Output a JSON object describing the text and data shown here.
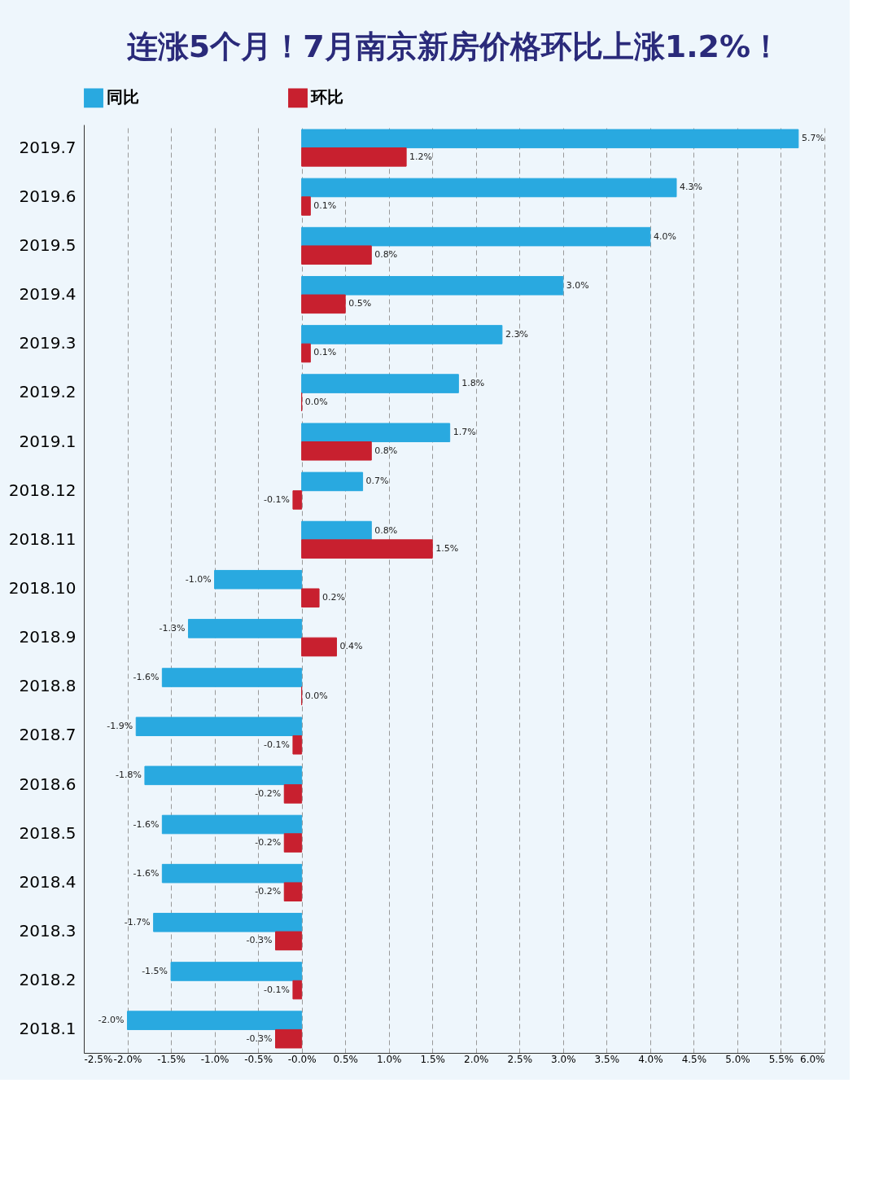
{
  "chart_data": {
    "type": "bar",
    "orientation": "horizontal",
    "title": "连涨5个月！7月南京新房价格环比上涨1.2%！",
    "categories": [
      "2019.7",
      "2019.6",
      "2019.5",
      "2019.4",
      "2019.3",
      "2019.2",
      "2019.1",
      "2018.12",
      "2018.11",
      "2018.10",
      "2018.9",
      "2018.8",
      "2018.7",
      "2018.6",
      "2018.5",
      "2018.4",
      "2018.3",
      "2018.2",
      "2018.1"
    ],
    "series": [
      {
        "name": "同比",
        "color": "#29a9e0",
        "values": [
          5.7,
          4.3,
          4.0,
          3.0,
          2.3,
          1.8,
          1.7,
          0.7,
          0.8,
          -1.0,
          -1.3,
          -1.6,
          -1.9,
          -1.8,
          -1.6,
          -1.6,
          -1.7,
          -1.5,
          -2.0
        ],
        "value_labels": [
          "5.7%",
          "4.3%",
          "4.0%",
          "3.0%",
          "2.3%",
          "1.8%",
          "1.7%",
          "0.7%",
          "0.8%",
          "-1.0%",
          "-1.3%",
          "-1.6%",
          "-1.9%",
          "-1.8%",
          "-1.6%",
          "-1.6%",
          "-1.7%",
          "-1.5%",
          "-2.0%"
        ]
      },
      {
        "name": "环比",
        "color": "#c8202f",
        "values": [
          1.2,
          0.1,
          0.8,
          0.5,
          0.1,
          0.0,
          0.8,
          -0.1,
          1.5,
          0.2,
          0.4,
          0.0,
          -0.1,
          -0.2,
          -0.2,
          -0.2,
          -0.3,
          -0.1,
          -0.3
        ],
        "value_labels": [
          "1.2%",
          "0.1%",
          "0.8%",
          "0.5%",
          "0.1%",
          "0.0%",
          "0.8%",
          "-0.1%",
          "1.5%",
          "0.2%",
          "0.4%",
          "0.0%",
          "-0.1%",
          "-0.2%",
          "-0.2%",
          "-0.2%",
          "-0.3%",
          "-0.1%",
          "-0.3%"
        ]
      }
    ],
    "xlim": [
      -2.5,
      6.0
    ],
    "xticks": [
      {
        "value": -2.5,
        "label": "-2.5%"
      },
      {
        "value": -2.0,
        "label": "-2.0%"
      },
      {
        "value": -1.5,
        "label": "-1.5%"
      },
      {
        "value": -1.0,
        "label": "-1.0%"
      },
      {
        "value": -0.5,
        "label": "-0.5%"
      },
      {
        "value": 0,
        "label": "-0.0%"
      },
      {
        "value": 0.5,
        "label": "0.5%"
      },
      {
        "value": 1.0,
        "label": "1.0%"
      },
      {
        "value": 1.5,
        "label": "1.5%"
      },
      {
        "value": 2.0,
        "label": "2.0%"
      },
      {
        "value": 2.5,
        "label": "2.5%"
      },
      {
        "value": 3.0,
        "label": "3.0%"
      },
      {
        "value": 3.5,
        "label": "3.5%"
      },
      {
        "value": 4.0,
        "label": "4.0%"
      },
      {
        "value": 4.5,
        "label": "4.5%"
      },
      {
        "value": 5.0,
        "label": "5.0%"
      },
      {
        "value": 5.5,
        "label": "5.5%"
      },
      {
        "value": 6.0,
        "label": "6.0%"
      }
    ],
    "grid": "x",
    "legend": "top"
  }
}
